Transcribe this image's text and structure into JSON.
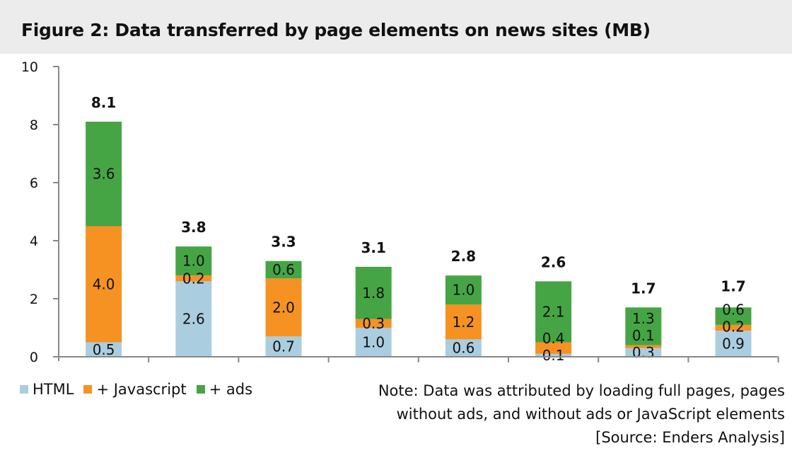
{
  "chart_data": {
    "type": "bar",
    "stacked": true,
    "title": "Figure 2: Data transferred by page elements on news sites (MB)",
    "xlabel": "",
    "ylabel": "",
    "ylim": [
      0,
      10
    ],
    "yticks": [
      0,
      2,
      4,
      6,
      8,
      10
    ],
    "grid": false,
    "legend_position": "bottom-left",
    "categories": [
      "",
      "",
      "",
      "",
      "",
      "",
      "",
      ""
    ],
    "series": [
      {
        "name": "HTML",
        "color": "#abcde0",
        "values": [
          0.5,
          2.6,
          0.7,
          1.0,
          0.6,
          0.1,
          0.3,
          0.9
        ]
      },
      {
        "name": "+ Javascript",
        "color": "#f59222",
        "values": [
          4.0,
          0.2,
          2.0,
          0.3,
          1.2,
          0.4,
          0.1,
          0.2
        ]
      },
      {
        "name": "+ ads",
        "color": "#45a545",
        "values": [
          3.6,
          1.0,
          0.6,
          1.8,
          1.0,
          2.1,
          1.3,
          0.6
        ]
      }
    ],
    "totals": [
      8.1,
      3.8,
      3.3,
      3.1,
      2.8,
      2.6,
      1.7,
      1.7
    ],
    "annotations": [
      "Note: Data was attributed by loading full pages, pages",
      "without ads, and without ads or JavaScript elements",
      "[Source: Enders Analysis]"
    ]
  }
}
